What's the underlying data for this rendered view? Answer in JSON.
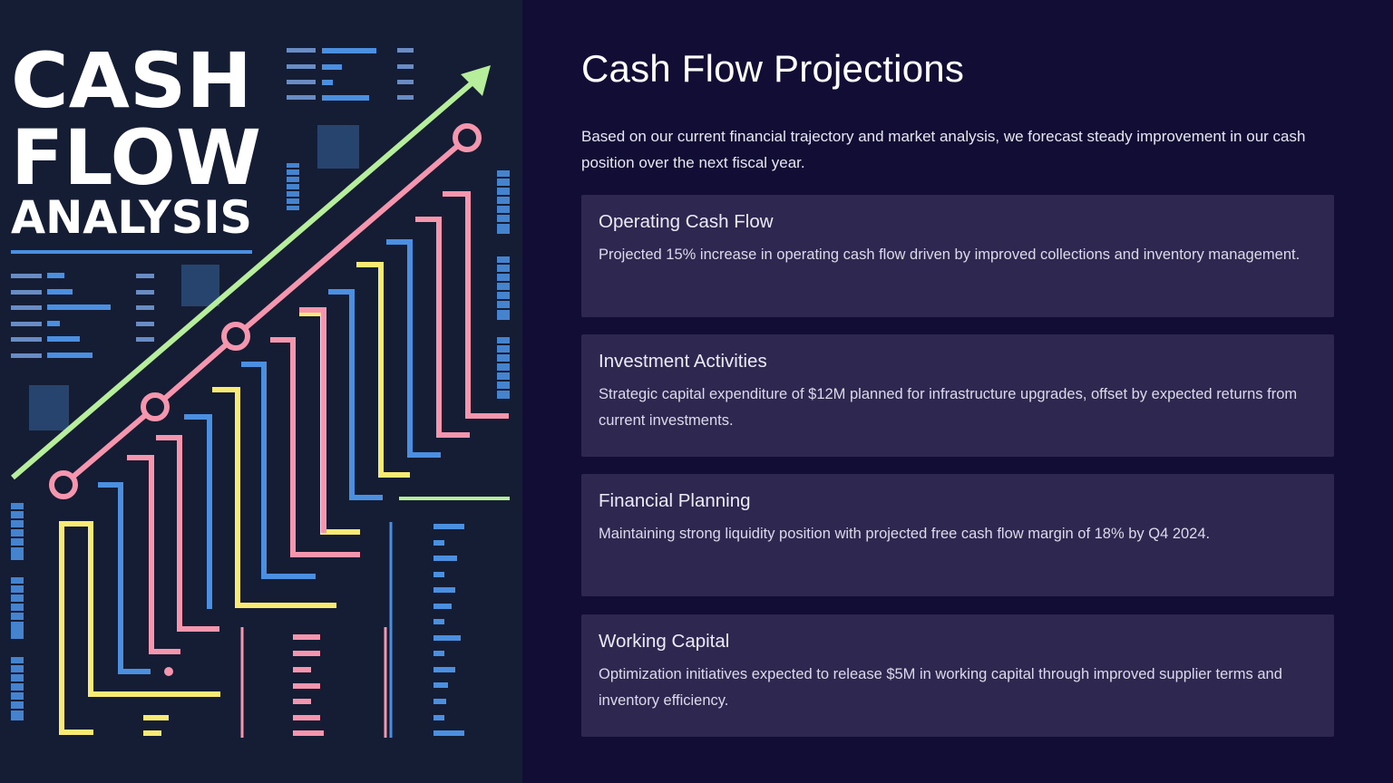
{
  "poster": {
    "line1": "CASH",
    "line2": "FLOW",
    "line3": "ANALYSIS",
    "colors": {
      "background": "#141d33",
      "green": "#b7ee9b",
      "pink": "#f596ae",
      "blue": "#4a8fe0",
      "yellow": "#f8ea72"
    }
  },
  "main": {
    "title": "Cash Flow Projections",
    "intro": "Based on our current financial trajectory and market analysis, we forecast steady improvement in our cash position over the next fiscal year.",
    "cards": [
      {
        "title": "Operating Cash Flow",
        "text": "Projected 15% increase in operating cash flow driven by improved collections and inventory management."
      },
      {
        "title": "Investment Activities",
        "text": "Strategic capital expenditure of $12M planned for infrastructure upgrades, offset by expected returns from current investments."
      },
      {
        "title": "Financial Planning",
        "text": "Maintaining strong liquidity position with projected free cash flow margin of 18% by Q4 2024."
      },
      {
        "title": "Working Capital",
        "text": "Optimization initiatives expected to release $5M in working capital through improved supplier terms and inventory efficiency."
      }
    ]
  }
}
